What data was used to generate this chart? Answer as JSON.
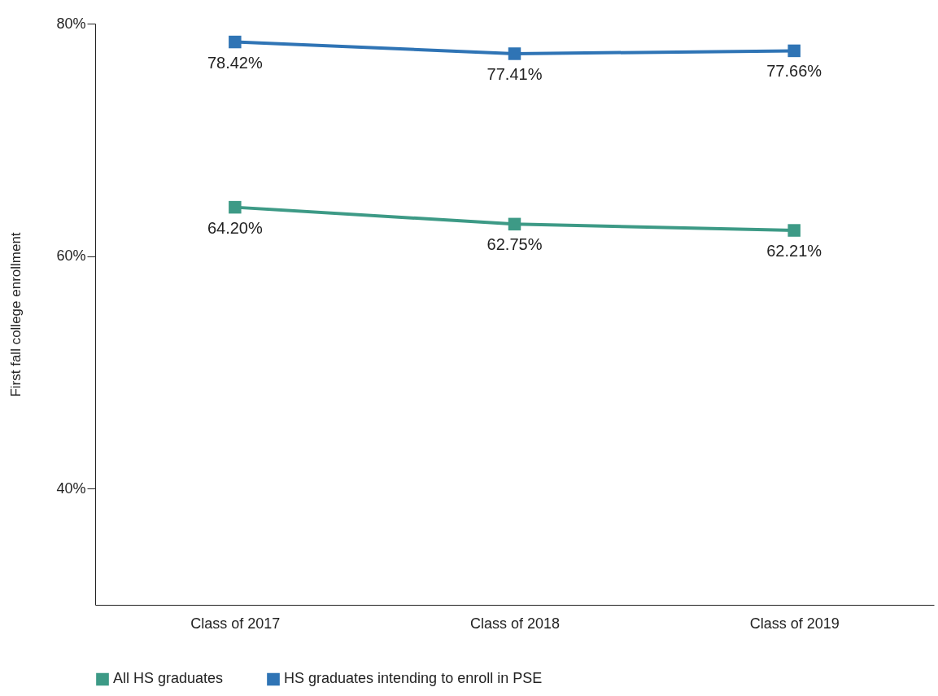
{
  "chart_data": {
    "type": "line",
    "ylabel": "First fall college enrollment",
    "categories": [
      "Class of 2017",
      "Class of 2018",
      "Class of 2019"
    ],
    "series": [
      {
        "name": "All HS graduates",
        "color": "#3d9a86",
        "values": [
          64.2,
          62.75,
          62.21
        ],
        "value_labels": [
          "64.20%",
          "62.75%",
          "62.21%"
        ]
      },
      {
        "name": "HS graduates intending to enroll in PSE",
        "color": "#2f74b5",
        "values": [
          78.42,
          77.41,
          77.66
        ],
        "value_labels": [
          "78.42%",
          "77.41%",
          "77.66%"
        ]
      }
    ],
    "ylim": [
      30,
      80
    ],
    "yticks": [
      {
        "value": 40,
        "label": "40%"
      },
      {
        "value": 60,
        "label": "60%"
      },
      {
        "value": 80,
        "label": "80%"
      }
    ],
    "grid": false,
    "legend": "bottom",
    "marker": "square",
    "line_style": "solid"
  }
}
